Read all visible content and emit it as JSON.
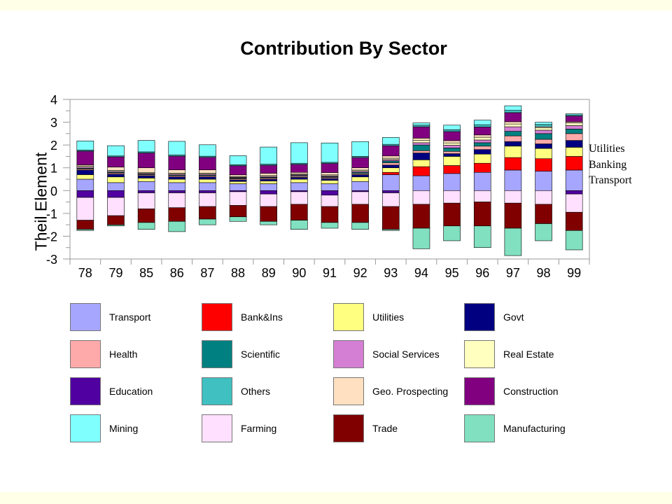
{
  "chart_data": {
    "type": "bar",
    "stacked": true,
    "title": "Contribution By Sector",
    "ylabel": "Theil Element",
    "xlabel": "",
    "ylim": [
      -3,
      4
    ],
    "yticks": [
      "4",
      "3",
      "2",
      "1",
      "0",
      "-1",
      "-2",
      "-3"
    ],
    "categories": [
      "78",
      "79",
      "85",
      "86",
      "87",
      "88",
      "89",
      "90",
      "91",
      "92",
      "93",
      "94",
      "95",
      "96",
      "97",
      "98",
      "99"
    ],
    "annotations": [
      "Utilities",
      "Banking",
      "Transport"
    ],
    "legend_placement": "bottom",
    "series": [
      {
        "name": "Transport",
        "color": "#a6a6ff",
        "values": [
          0.5,
          0.35,
          0.4,
          0.35,
          0.35,
          0.3,
          0.3,
          0.35,
          0.3,
          0.4,
          0.7,
          0.65,
          0.75,
          0.8,
          0.9,
          0.85,
          0.9
        ]
      },
      {
        "name": "Bank&Ins",
        "color": "#ff0000",
        "values": [
          0,
          0,
          0,
          0,
          0,
          0,
          0,
          0,
          0,
          0,
          0.1,
          0.4,
          0.35,
          0.4,
          0.55,
          0.55,
          0.6
        ]
      },
      {
        "name": "Utilities",
        "color": "#ffff80",
        "values": [
          0.2,
          0.25,
          0.15,
          0.15,
          0.15,
          0.1,
          0.12,
          0.15,
          0.15,
          0.2,
          0.2,
          0.3,
          0.4,
          0.4,
          0.5,
          0.45,
          0.4
        ]
      },
      {
        "name": "Govt",
        "color": "#000080",
        "values": [
          0.2,
          0.12,
          0.1,
          0.1,
          0.1,
          0.07,
          0.08,
          0.08,
          0.08,
          0.1,
          0.12,
          0.3,
          0.12,
          0.2,
          0.2,
          0.2,
          0.3
        ]
      },
      {
        "name": "Health",
        "color": "#ffaaaa",
        "values": [
          0.05,
          0.05,
          0.04,
          0.05,
          0.05,
          0.05,
          0.05,
          0.05,
          0.05,
          0.05,
          0.1,
          0.1,
          0.1,
          0.15,
          0.25,
          0.2,
          0.3
        ]
      },
      {
        "name": "Scientific",
        "color": "#008080",
        "values": [
          0.03,
          0.03,
          0.03,
          0.03,
          0.03,
          0.03,
          0.03,
          0.03,
          0.03,
          0.05,
          0.08,
          0.25,
          0.15,
          0.15,
          0.2,
          0.25,
          0.2
        ]
      },
      {
        "name": "Social Services",
        "color": "#d47fd4",
        "values": [
          0.05,
          0.04,
          0.04,
          0.04,
          0.04,
          0.03,
          0.04,
          0.04,
          0.04,
          0.05,
          0.06,
          0.1,
          0.12,
          0.12,
          0.2,
          0.15,
          0.15
        ]
      },
      {
        "name": "Real Estate",
        "color": "#ffffc0",
        "values": [
          0.05,
          0.04,
          0.04,
          0.04,
          0.04,
          0.03,
          0.04,
          0.04,
          0.04,
          0.05,
          0.06,
          0.1,
          0.1,
          0.12,
          0.12,
          0.1,
          0.12
        ]
      },
      {
        "name": "Geo. Prospecting",
        "color": "#ffe0c0",
        "values": [
          0.05,
          0.15,
          0.2,
          0.15,
          0.15,
          0.08,
          0.1,
          0.06,
          0.1,
          0.1,
          0.1,
          0.1,
          0.1,
          0.1,
          0.1,
          0.05,
          0.05
        ]
      },
      {
        "name": "Construction",
        "color": "#800080",
        "values": [
          0.6,
          0.45,
          0.65,
          0.6,
          0.55,
          0.4,
          0.35,
          0.35,
          0.4,
          0.45,
          0.45,
          0.5,
          0.4,
          0.35,
          0.4,
          0.0,
          0.25
        ]
      },
      {
        "name": "Others",
        "color": "#40c0c0",
        "values": [
          0.05,
          0.04,
          0.05,
          0.05,
          0.05,
          0.04,
          0.05,
          0.05,
          0.05,
          0.05,
          0.06,
          0.07,
          0.08,
          0.1,
          0.1,
          0.1,
          0.05
        ]
      },
      {
        "name": "Mining",
        "color": "#80ffff",
        "values": [
          0.4,
          0.45,
          0.5,
          0.6,
          0.5,
          0.4,
          0.75,
          0.9,
          0.85,
          0.65,
          0.3,
          0.1,
          0.2,
          0.2,
          0.2,
          0.1,
          0.05
        ]
      },
      {
        "name": "Education",
        "color": "#5000a0",
        "values": [
          -0.3,
          -0.3,
          -0.1,
          -0.1,
          -0.1,
          -0.05,
          -0.15,
          -0.05,
          -0.2,
          -0.05,
          -0.1,
          0,
          0,
          0,
          0,
          0,
          -0.15
        ]
      },
      {
        "name": "Farming",
        "color": "#ffe0ff",
        "values": [
          -1.0,
          -0.8,
          -0.7,
          -0.65,
          -0.6,
          -0.6,
          -0.55,
          -0.55,
          -0.5,
          -0.55,
          -0.6,
          -0.6,
          -0.55,
          -0.5,
          -0.55,
          -0.6,
          -0.8
        ]
      },
      {
        "name": "Trade",
        "color": "#800000",
        "values": [
          -0.4,
          -0.4,
          -0.6,
          -0.6,
          -0.55,
          -0.5,
          -0.65,
          -0.7,
          -0.7,
          -0.8,
          -1.0,
          -1.05,
          -1.0,
          -1.05,
          -1.1,
          -0.85,
          -0.8
        ]
      },
      {
        "name": "Manufacturing",
        "color": "#80e0c0",
        "values": [
          -0.05,
          -0.05,
          -0.3,
          -0.45,
          -0.25,
          -0.2,
          -0.15,
          -0.4,
          -0.25,
          -0.3,
          -0.05,
          -0.9,
          -0.65,
          -0.95,
          -1.2,
          -0.75,
          -0.85
        ]
      }
    ]
  },
  "legend": {
    "items": [
      {
        "label": "Transport",
        "color": "#a6a6ff"
      },
      {
        "label": "Bank&Ins",
        "color": "#ff0000"
      },
      {
        "label": "Utilities",
        "color": "#ffff80"
      },
      {
        "label": "Govt",
        "color": "#000080"
      },
      {
        "label": "Health",
        "color": "#ffaaaa"
      },
      {
        "label": "Scientific",
        "color": "#008080"
      },
      {
        "label": "Social Services",
        "color": "#d47fd4"
      },
      {
        "label": "Real Estate",
        "color": "#ffffc0"
      },
      {
        "label": "Education",
        "color": "#5000a0"
      },
      {
        "label": "Others",
        "color": "#40c0c0"
      },
      {
        "label": "Geo. Prospecting",
        "color": "#ffe0c0"
      },
      {
        "label": "Construction",
        "color": "#800080"
      },
      {
        "label": "Mining",
        "color": "#80ffff"
      },
      {
        "label": "Farming",
        "color": "#ffe0ff"
      },
      {
        "label": "Trade",
        "color": "#800000"
      },
      {
        "label": "Manufacturing",
        "color": "#80e0c0"
      }
    ]
  }
}
